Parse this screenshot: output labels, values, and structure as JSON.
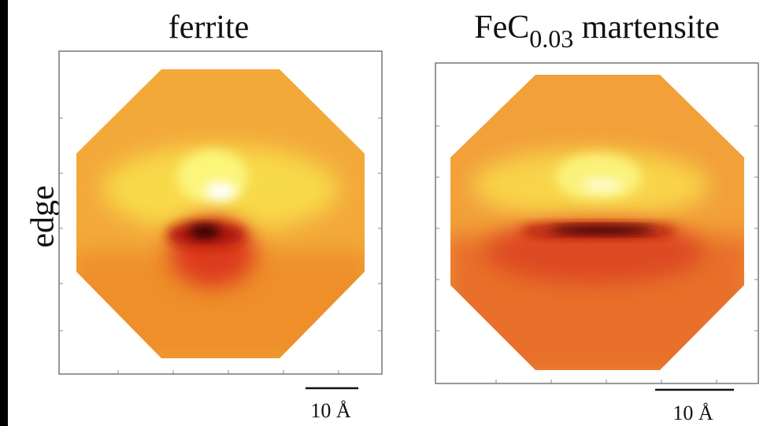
{
  "row_label": "edge",
  "panels": [
    {
      "title": "ferrite",
      "scale_bar": "10 Å"
    },
    {
      "title": {
        "main": "FeC",
        "subscript": "0.03",
        "rest": " martensite"
      },
      "scale_bar": "10 Å"
    }
  ]
}
